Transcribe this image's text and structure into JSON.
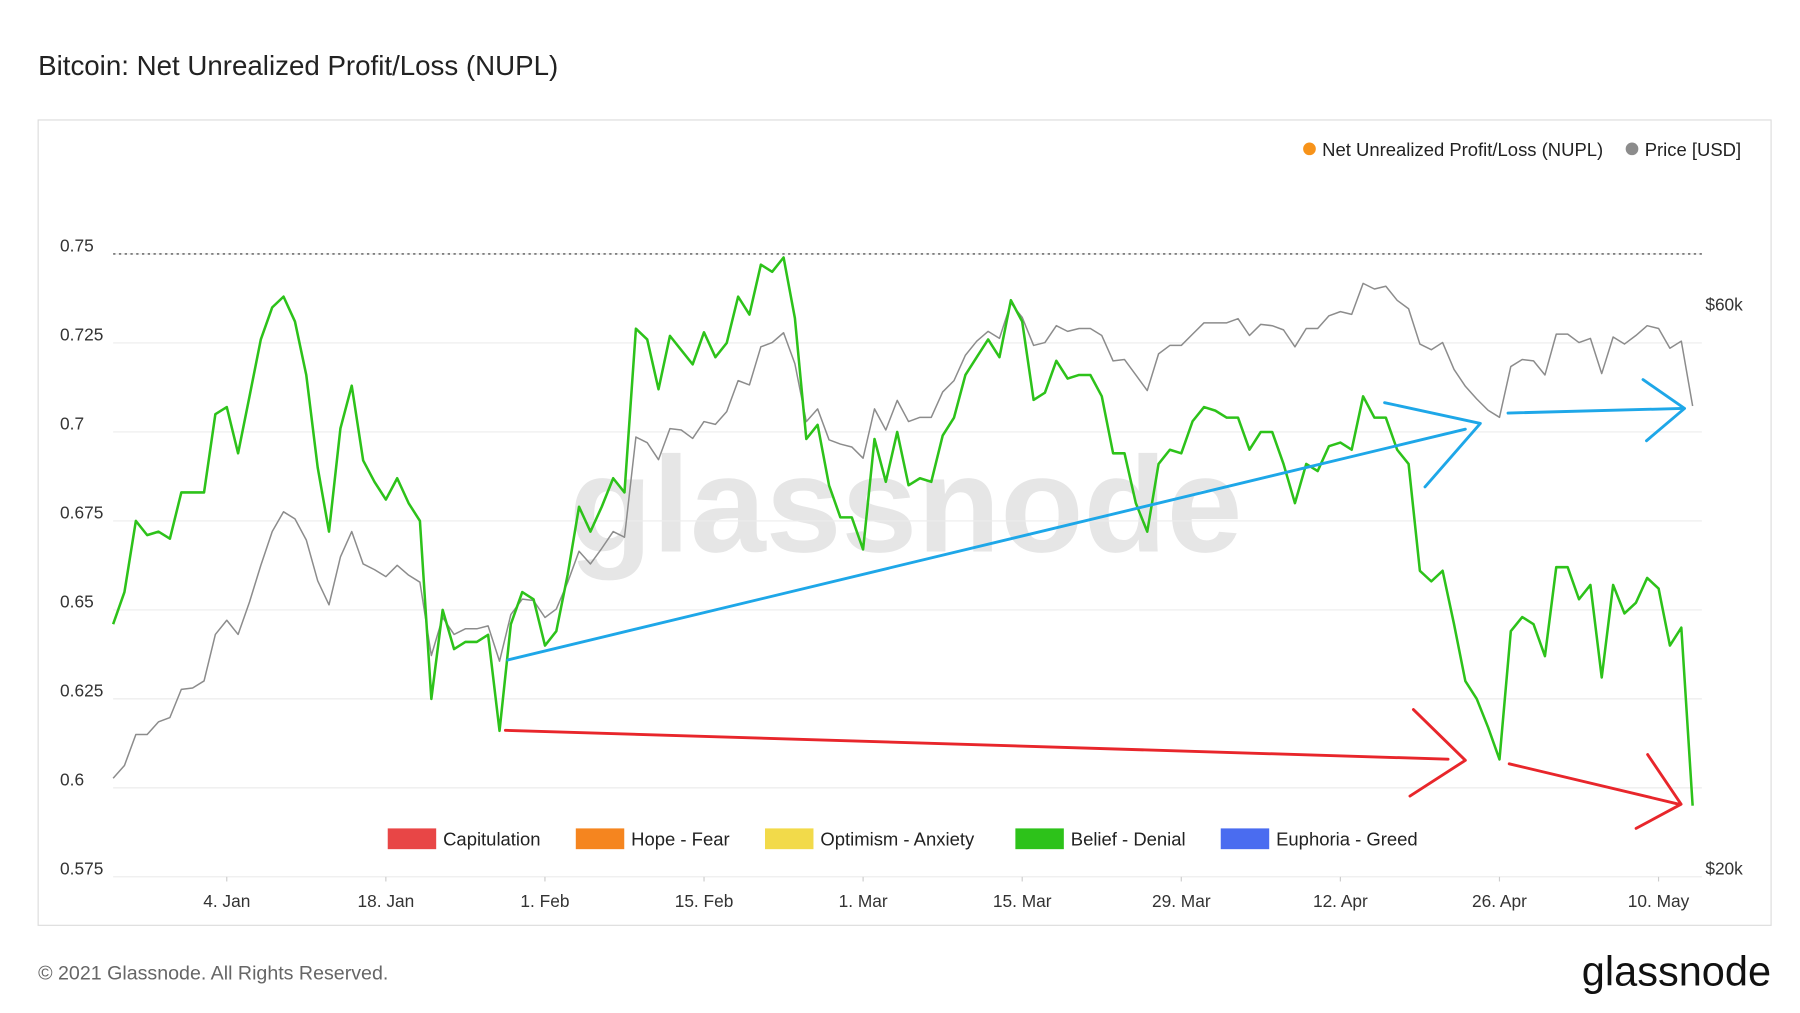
{
  "chart_data": {
    "type": "line",
    "title": "Bitcoin: Net Unrealized Profit/Loss (NUPL)",
    "watermark": "glassnode",
    "x": [
      "12-25",
      "12-26",
      "12-27",
      "12-28",
      "12-29",
      "12-30",
      "12-31",
      "01-01",
      "01-02",
      "01-03",
      "01-04",
      "01-05",
      "01-06",
      "01-07",
      "01-08",
      "01-09",
      "01-10",
      "01-11",
      "01-12",
      "01-13",
      "01-14",
      "01-15",
      "01-16",
      "01-17",
      "01-18",
      "01-19",
      "01-20",
      "01-21",
      "01-22",
      "01-23",
      "01-24",
      "01-25",
      "01-26",
      "01-27",
      "01-28",
      "01-29",
      "01-30",
      "01-31",
      "02-01",
      "02-02",
      "02-03",
      "02-04",
      "02-05",
      "02-06",
      "02-07",
      "02-08",
      "02-09",
      "02-10",
      "02-11",
      "02-12",
      "02-13",
      "02-14",
      "02-15",
      "02-16",
      "02-17",
      "02-18",
      "02-19",
      "02-20",
      "02-21",
      "02-22",
      "02-23",
      "02-24",
      "02-25",
      "02-26",
      "02-27",
      "02-28",
      "03-01",
      "03-02",
      "03-03",
      "03-04",
      "03-05",
      "03-06",
      "03-07",
      "03-08",
      "03-09",
      "03-10",
      "03-11",
      "03-12",
      "03-13",
      "03-14",
      "03-15",
      "03-16",
      "03-17",
      "03-18",
      "03-19",
      "03-20",
      "03-21",
      "03-22",
      "03-23",
      "03-24",
      "03-25",
      "03-26",
      "03-27",
      "03-28",
      "03-29",
      "03-30",
      "03-31",
      "04-01",
      "04-02",
      "04-03",
      "04-04",
      "04-05",
      "04-06",
      "04-07",
      "04-08",
      "04-09",
      "04-10",
      "04-11",
      "04-12",
      "04-13",
      "04-14",
      "04-15",
      "04-16",
      "04-17",
      "04-18",
      "04-19",
      "04-20",
      "04-21",
      "04-22",
      "04-23",
      "04-24",
      "04-25",
      "04-26",
      "04-27",
      "04-28",
      "04-29",
      "04-30",
      "05-01",
      "05-02",
      "05-03",
      "05-04",
      "05-05",
      "05-06",
      "05-07",
      "05-08",
      "05-09",
      "05-10",
      "05-11",
      "05-12",
      "05-13"
    ],
    "xticks": [
      {
        "value": "01-04",
        "label": "4. Jan"
      },
      {
        "value": "01-18",
        "label": "18. Jan"
      },
      {
        "value": "02-01",
        "label": "1. Feb"
      },
      {
        "value": "02-15",
        "label": "15. Feb"
      },
      {
        "value": "03-01",
        "label": "1. Mar"
      },
      {
        "value": "03-15",
        "label": "15. Mar"
      },
      {
        "value": "03-29",
        "label": "29. Mar"
      },
      {
        "value": "04-12",
        "label": "12. Apr"
      },
      {
        "value": "04-26",
        "label": "26. Apr"
      },
      {
        "value": "05-10",
        "label": "10. May"
      }
    ],
    "ylim": [
      0.575,
      0.775
    ],
    "yticks": [
      0.575,
      0.6,
      0.625,
      0.65,
      0.675,
      0.7,
      0.725,
      0.75
    ],
    "y2lim": [
      20000,
      70500
    ],
    "y2ticks": [
      {
        "value": 20000,
        "label": "$20k"
      },
      {
        "value": 60000,
        "label": "$60k"
      }
    ],
    "grid": true,
    "reference_line": 0.75,
    "legend": "top-right",
    "series": [
      {
        "name": "Net Unrealized Profit/Loss (NUPL)",
        "color": "#2dc21a",
        "legend_color": "#f7931a",
        "values": [
          0.646,
          0.655,
          0.675,
          0.671,
          0.672,
          0.67,
          0.683,
          0.683,
          0.683,
          0.705,
          0.707,
          0.694,
          0.71,
          0.726,
          0.735,
          0.738,
          0.731,
          0.716,
          0.69,
          0.672,
          0.701,
          0.713,
          0.692,
          0.686,
          0.681,
          0.687,
          0.68,
          0.675,
          0.625,
          0.65,
          0.639,
          0.641,
          0.641,
          0.643,
          0.616,
          0.646,
          0.655,
          0.653,
          0.64,
          0.644,
          0.66,
          0.679,
          0.672,
          0.679,
          0.687,
          0.683,
          0.729,
          0.726,
          0.712,
          0.727,
          0.723,
          0.719,
          0.728,
          0.721,
          0.725,
          0.738,
          0.733,
          0.747,
          0.745,
          0.749,
          0.732,
          0.698,
          0.702,
          0.685,
          0.676,
          0.676,
          0.667,
          0.698,
          0.686,
          0.7,
          0.685,
          0.687,
          0.686,
          0.699,
          0.704,
          0.716,
          0.721,
          0.726,
          0.721,
          0.737,
          0.731,
          0.709,
          0.711,
          0.72,
          0.715,
          0.716,
          0.716,
          0.71,
          0.694,
          0.694,
          0.68,
          0.672,
          0.691,
          0.695,
          0.694,
          0.703,
          0.707,
          0.706,
          0.704,
          0.704,
          0.695,
          0.7,
          0.7,
          0.691,
          0.68,
          0.691,
          0.689,
          0.696,
          0.697,
          0.695,
          0.71,
          0.704,
          0.704,
          0.695,
          0.691,
          0.661,
          0.658,
          0.661,
          0.646,
          0.63,
          0.625,
          0.617,
          0.608,
          0.644,
          0.648,
          0.646,
          0.637,
          0.662,
          0.662,
          0.653,
          0.657,
          0.631,
          0.657,
          0.649,
          0.652,
          0.659,
          0.656,
          0.64,
          0.645,
          0.595
        ]
      },
      {
        "name": "Price [USD]",
        "color": "#8c8c8c",
        "legend_color": "#8c8c8c",
        "axis": "y2",
        "values": [
          27000,
          27900,
          30100,
          30100,
          31000,
          31300,
          33300,
          33400,
          33900,
          37200,
          38200,
          37200,
          39500,
          42100,
          44500,
          45900,
          45400,
          43900,
          41000,
          39300,
          42700,
          44500,
          42200,
          41800,
          41300,
          42100,
          41400,
          40900,
          35700,
          38400,
          37200,
          37600,
          37600,
          37800,
          35300,
          38600,
          39700,
          39600,
          38400,
          39000,
          40900,
          43100,
          42200,
          43300,
          44500,
          44100,
          51200,
          50800,
          49600,
          51800,
          51700,
          51100,
          52300,
          52100,
          53000,
          55200,
          54900,
          57600,
          57900,
          58600,
          56400,
          52300,
          53200,
          51000,
          50700,
          50500,
          49700,
          53200,
          51700,
          53800,
          52300,
          52600,
          52600,
          54400,
          55200,
          57000,
          58000,
          58700,
          58200,
          60700,
          59700,
          57700,
          57900,
          59100,
          58700,
          58900,
          58900,
          58400,
          56600,
          56700,
          55600,
          54500,
          57100,
          57700,
          57700,
          58500,
          59300,
          59300,
          59300,
          59600,
          58400,
          59200,
          59100,
          58800,
          57600,
          58900,
          58900,
          59800,
          60100,
          59900,
          62100,
          61700,
          61900,
          60900,
          60300,
          57800,
          57400,
          57900,
          56000,
          54800,
          53900,
          53100,
          52600,
          56200,
          56700,
          56600,
          55600,
          58500,
          58500,
          57900,
          58200,
          55700,
          58300,
          57800,
          58400,
          59100,
          58900,
          57500,
          58000,
          53400
        ]
      }
    ],
    "zones": [
      {
        "name": "Capitulation",
        "color": "#e84646"
      },
      {
        "name": "Hope - Fear",
        "color": "#f5851f"
      },
      {
        "name": "Optimism - Anxiety",
        "color": "#f2da4a"
      },
      {
        "name": "Belief - Denial",
        "color": "#2dc21a"
      },
      {
        "name": "Euphoria - Greed",
        "color": "#4a6cf0"
      }
    ],
    "footer": "© 2021 Glassnode. All Rights Reserved.",
    "logo": "glassnode"
  }
}
